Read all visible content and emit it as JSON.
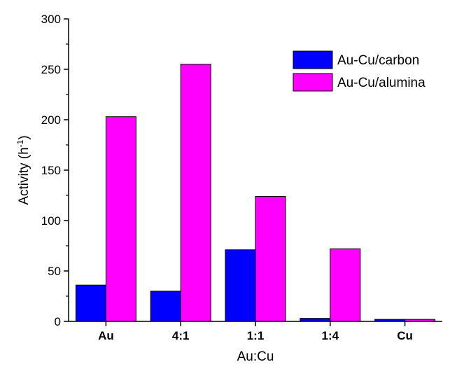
{
  "chart_data": {
    "type": "bar",
    "categories": [
      "Au",
      "4:1",
      "1:1",
      "1:4",
      "Cu"
    ],
    "series": [
      {
        "name": "Au-Cu/carbon",
        "color": "#0000ff",
        "values": [
          36,
          30,
          71,
          3,
          2
        ]
      },
      {
        "name": "Au-Cu/alumina",
        "color": "#ff00ff",
        "values": [
          203,
          255,
          124,
          72,
          2
        ]
      }
    ],
    "xlabel": "Au:Cu",
    "ylabel": {
      "base": "Activity (h",
      "sup": "-1",
      "close": ")"
    },
    "ylim": [
      0,
      300
    ],
    "yticks": [
      "0",
      "50",
      "100",
      "150",
      "200",
      "250",
      "300"
    ],
    "grid": false,
    "legend_position": "top-right"
  }
}
